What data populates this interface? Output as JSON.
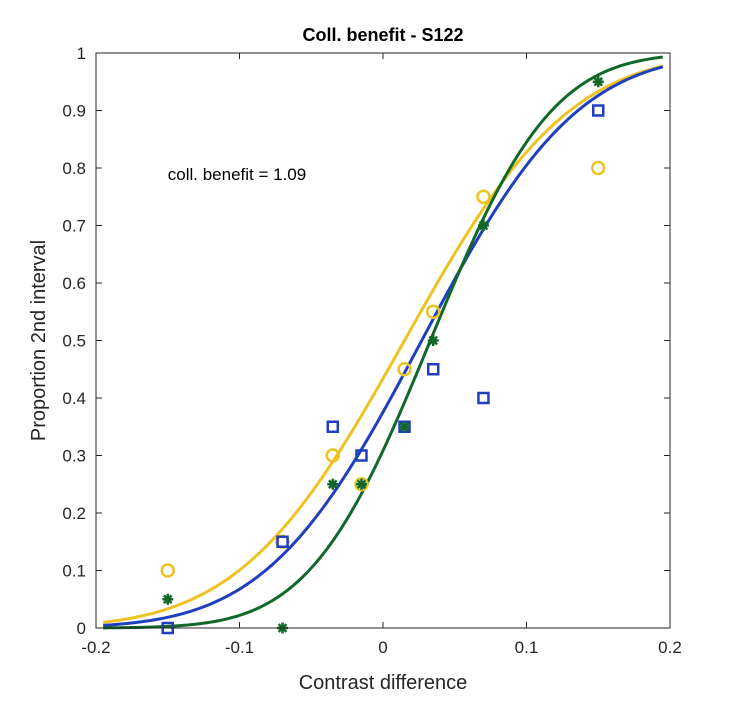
{
  "chart_data": {
    "type": "scatter",
    "title": "Coll. benefit - S122",
    "xlabel": "Contrast difference",
    "ylabel": "Proportion 2nd interval",
    "xlim": [
      -0.2,
      0.2
    ],
    "ylim": [
      0,
      1
    ],
    "xticks": [
      -0.2,
      -0.1,
      0,
      0.1,
      0.2
    ],
    "xtick_labels": [
      "-0.2",
      "-0.1",
      "0",
      "0.1",
      "0.2"
    ],
    "yticks": [
      0,
      0.1,
      0.2,
      0.3,
      0.4,
      0.5,
      0.6,
      0.7,
      0.8,
      0.9,
      1
    ],
    "ytick_labels": [
      "0",
      "0.1",
      "0.2",
      "0.3",
      "0.4",
      "0.5",
      "0.6",
      "0.7",
      "0.8",
      "0.9",
      "1"
    ],
    "grid": false,
    "annotation": {
      "text": "coll. benefit = 1.09",
      "x": -0.15,
      "y": 0.79
    },
    "series": [
      {
        "marker": "circle",
        "color": "#EDC322",
        "x": [
          -0.15,
          -0.07,
          -0.035,
          -0.015,
          0.015,
          0.035,
          0.07,
          0.15
        ],
        "y": [
          0.1,
          0.15,
          0.3,
          0.25,
          0.45,
          0.55,
          0.75,
          0.8
        ],
        "fit": {
          "mu": 0.015,
          "sigma": 0.09,
          "x_range": [
            -0.195,
            0.195
          ]
        }
      },
      {
        "marker": "square",
        "color": "#1F3FBF",
        "x": [
          -0.15,
          -0.07,
          -0.035,
          -0.015,
          0.015,
          0.035,
          0.07,
          0.15
        ],
        "y": [
          0.0,
          0.15,
          0.35,
          0.3,
          0.35,
          0.45,
          0.4,
          0.9
        ],
        "fit": {
          "mu": 0.027,
          "sigma": 0.085,
          "x_range": [
            -0.195,
            0.195
          ]
        }
      },
      {
        "marker": "asterisk",
        "color": "#116828",
        "x": [
          -0.15,
          -0.07,
          -0.035,
          -0.015,
          0.015,
          0.035,
          0.07,
          0.15
        ],
        "y": [
          0.05,
          0.0,
          0.25,
          0.25,
          0.35,
          0.5,
          0.7,
          0.95
        ],
        "fit": {
          "mu": 0.033,
          "sigma": 0.066,
          "x_range": [
            -0.195,
            0.195
          ]
        }
      }
    ]
  }
}
